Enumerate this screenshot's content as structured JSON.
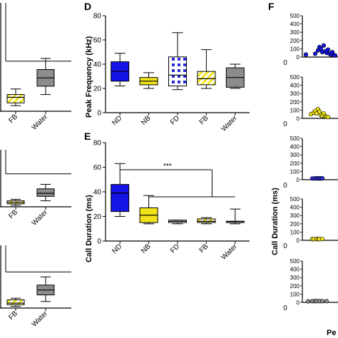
{
  "panels": {
    "D": "D",
    "E": "E",
    "F": "F"
  },
  "colors": {
    "ND": "#1414e6",
    "NB": "#f2e41a",
    "FD": "#2a2ad6",
    "FB": "#f2e41a",
    "Water": "#8c8c8c",
    "line": "#000000"
  },
  "chart_data": [
    {
      "id": "left-partial",
      "type": "box",
      "categories": [
        "FB",
        "Water"
      ],
      "subpanels": [
        {
          "series": [
            {
              "name": "FB",
              "min": 2,
              "q1": 3,
              "median": 5,
              "q3": 6,
              "max": 8
            },
            {
              "name": "Water",
              "min": 6,
              "q1": 9,
              "median": 12,
              "q3": 15,
              "max": 19
            }
          ],
          "ylim": [
            0,
            40
          ]
        },
        {
          "series": [
            {
              "name": "FB",
              "min": 1,
              "q1": 2,
              "median": 3,
              "q3": 4,
              "max": 5
            },
            {
              "name": "Water",
              "min": 4,
              "q1": 7,
              "median": 9,
              "q3": 12,
              "max": 15
            }
          ],
          "ylim": [
            0,
            40
          ]
        },
        {
          "series": [
            {
              "name": "FB",
              "min": 1,
              "q1": 2,
              "median": 3,
              "q3": 5,
              "max": 6
            },
            {
              "name": "Water",
              "min": 4,
              "q1": 8,
              "median": 11,
              "q3": 14,
              "max": 19
            }
          ],
          "ylim": [
            0,
            40
          ]
        }
      ]
    },
    {
      "id": "D",
      "type": "box",
      "ylabel": "Peak Frequency (kHz)",
      "ylim": [
        0,
        80
      ],
      "yticks": [
        "0",
        "20",
        "40",
        "60",
        "80"
      ],
      "categories": [
        "ND",
        "NB",
        "FD",
        "FB",
        "Water"
      ],
      "series": [
        {
          "name": "ND",
          "min": 22,
          "q1": 26,
          "median": 34,
          "q3": 42,
          "max": 49
        },
        {
          "name": "NB",
          "min": 20,
          "q1": 23,
          "median": 26,
          "q3": 29,
          "max": 33
        },
        {
          "name": "FD",
          "min": 19,
          "q1": 22,
          "median": 31,
          "q3": 46,
          "max": 66
        },
        {
          "name": "FB",
          "min": 20,
          "q1": 23,
          "median": 28,
          "q3": 34,
          "max": 52
        },
        {
          "name": "Water",
          "min": 20,
          "q1": 21,
          "median": 29,
          "q3": 37,
          "max": 40
        }
      ]
    },
    {
      "id": "E",
      "type": "box",
      "ylabel": "Call Duration (ms)",
      "ylim": [
        0,
        80
      ],
      "yticks": [
        "0",
        "20",
        "40",
        "60",
        "80"
      ],
      "categories": [
        "ND",
        "NB",
        "FD",
        "FB",
        "Water"
      ],
      "significance": "***",
      "series": [
        {
          "name": "ND",
          "min": 20,
          "q1": 24,
          "median": 39,
          "q3": 46,
          "max": 63
        },
        {
          "name": "NB",
          "min": 14,
          "q1": 15,
          "median": 21,
          "q3": 27,
          "max": 37
        },
        {
          "name": "FD",
          "min": 14,
          "q1": 15,
          "median": 16,
          "q3": 17,
          "max": 17
        },
        {
          "name": "FB",
          "min": 14,
          "q1": 15,
          "median": 16,
          "q3": 18,
          "max": 19
        },
        {
          "name": "Water",
          "min": 14,
          "q1": 15,
          "median": 16,
          "q3": 16,
          "max": 26
        }
      ]
    },
    {
      "id": "F",
      "type": "scatter",
      "ylabel": "Call Duration (ms)",
      "xlabel_partial": "Pe",
      "ylim": [
        0,
        500
      ],
      "yticks": [
        "0",
        "100",
        "200",
        "300",
        "400",
        "500"
      ],
      "xtick": "0",
      "subpanels": [
        {
          "color": "#1414e6",
          "points": [
            [
              5,
              30
            ],
            [
              18,
              40
            ],
            [
              22,
              80
            ],
            [
              24,
              120
            ],
            [
              26,
              100
            ],
            [
              28,
              60
            ],
            [
              30,
              140
            ],
            [
              32,
              70
            ],
            [
              34,
              50
            ],
            [
              36,
              90
            ],
            [
              38,
              40
            ],
            [
              40,
              30
            ],
            [
              42,
              60
            ],
            [
              44,
              25
            ],
            [
              46,
              20
            ]
          ]
        },
        {
          "color": "#f2e41a",
          "points": [
            [
              12,
              50
            ],
            [
              16,
              70
            ],
            [
              18,
              90
            ],
            [
              20,
              60
            ],
            [
              22,
              110
            ],
            [
              24,
              80
            ],
            [
              26,
              40
            ],
            [
              28,
              30
            ],
            [
              30,
              60
            ],
            [
              32,
              25
            ],
            [
              34,
              20
            ],
            [
              36,
              15
            ]
          ]
        },
        {
          "color": "#2a2ad6",
          "points": [
            [
              14,
              15
            ],
            [
              18,
              15
            ],
            [
              20,
              18
            ],
            [
              22,
              15
            ],
            [
              24,
              16
            ],
            [
              26,
              15
            ],
            [
              28,
              17
            ]
          ]
        },
        {
          "color": "#f2e41a",
          "points": [
            [
              14,
              14
            ],
            [
              16,
              15
            ],
            [
              20,
              16
            ],
            [
              22,
              15
            ],
            [
              24,
              16
            ],
            [
              28,
              15
            ]
          ]
        },
        {
          "color": "#8c8c8c",
          "points": [
            [
              8,
              12
            ],
            [
              14,
              14
            ],
            [
              18,
              15
            ],
            [
              20,
              16
            ],
            [
              24,
              15
            ],
            [
              28,
              14
            ],
            [
              34,
              15
            ]
          ]
        }
      ]
    }
  ]
}
